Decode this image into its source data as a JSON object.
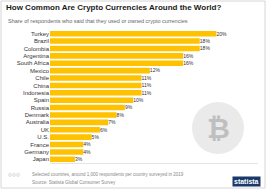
{
  "chart_data": {
    "type": "bar",
    "title": "How Common Are Crypto Currencies Around the World?",
    "subtitle": "Share of respondents who said that they used or owned crypto currencies",
    "orientation": "horizontal",
    "categories": [
      "Turkey",
      "Brazil",
      "Colombia",
      "Argentina",
      "South Africa",
      "Mexico",
      "Chile",
      "China",
      "Indonesia",
      "Spain",
      "Russia",
      "Denmark",
      "Australia",
      "UK",
      "U.S.",
      "France",
      "Germany",
      "Japan"
    ],
    "values": [
      20,
      18,
      18,
      16,
      16,
      12,
      11,
      11,
      11,
      10,
      9,
      8,
      7,
      6,
      5,
      4,
      4,
      3
    ],
    "value_labels": [
      "20%",
      "18%",
      "18%",
      "16%",
      "16%",
      "12%",
      "11%",
      "11%",
      "11%",
      "10%",
      "9%",
      "8%",
      "7%",
      "6%",
      "5%",
      "4%",
      "4%",
      "3%"
    ],
    "data_labels": true,
    "color": "#FFC200",
    "xlim": [
      0,
      25
    ],
    "grid": false,
    "tick_labels": "y",
    "annotations": [
      "ⒸⒸⒸ",
      "Selected countries, around 1,000 respondents per country surveyed in 2019",
      "Source: Statista Global Consumer Survey",
      "statista",
      "₿"
    ]
  }
}
